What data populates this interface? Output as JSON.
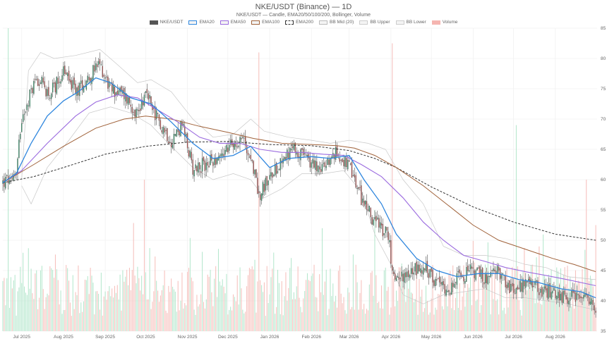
{
  "header": {
    "title": "NKE/USDT (Binance) — 1D",
    "subtitle": "NKE/USDT — Candle, EMA20/50/100/200, Bollinger, Volume"
  },
  "legend": [
    {
      "label": "NKE/USDT",
      "color": "#555555",
      "style": "fill"
    },
    {
      "label": "EMA20",
      "color": "#2e86de",
      "style": "outline"
    },
    {
      "label": "EMA50",
      "color": "#9b6bdf",
      "style": "outline"
    },
    {
      "label": "EMA100",
      "color": "#a0623a",
      "style": "outline"
    },
    {
      "label": "EMA200",
      "color": "#333333",
      "style": "dashed"
    },
    {
      "label": "BB Mid (20)",
      "color": "#bbbbbb",
      "style": "outline"
    },
    {
      "label": "BB Upper",
      "color": "#cccccc",
      "style": "outline"
    },
    {
      "label": "BB Lower",
      "color": "#cccccc",
      "style": "outline"
    },
    {
      "label": "Volume",
      "color": "#f5b5b0",
      "style": "fill"
    }
  ],
  "chart_data": {
    "type": "candlestick",
    "title": "NKE/USDT (Binance) — 1D",
    "subtitle": "NKE/USDT — Candle, EMA20/50/100/200, Bollinger, Volume",
    "x_range": [
      "2025-06-17",
      "2026-09-01"
    ],
    "ylim": [
      35,
      85
    ],
    "y_ticks": [
      35,
      40,
      45,
      50,
      55,
      60,
      65,
      70,
      75,
      80,
      85
    ],
    "x_ticks": [
      {
        "date": "2025-07-01",
        "label": "Jul 2025"
      },
      {
        "date": "2025-08-01",
        "label": "Aug 2025"
      },
      {
        "date": "2025-09-01",
        "label": "Sep 2025"
      },
      {
        "date": "2025-10-01",
        "label": "Oct 2025"
      },
      {
        "date": "2025-11-01",
        "label": "Nov 2025"
      },
      {
        "date": "2025-12-01",
        "label": "Dec 2025"
      },
      {
        "date": "2026-01-01",
        "label": "Jan 2026"
      },
      {
        "date": "2026-02-01",
        "label": "Feb 2026"
      },
      {
        "date": "2026-03-01",
        "label": "Mar 2026"
      },
      {
        "date": "2026-04-01",
        "label": "Apr 2026"
      },
      {
        "date": "2026-05-01",
        "label": "May 2026"
      },
      {
        "date": "2026-06-01",
        "label": "Jun 2026"
      },
      {
        "date": "2026-07-01",
        "label": "Jul 2026"
      },
      {
        "date": "2026-08-01",
        "label": "Aug 2026"
      }
    ],
    "price_path": [
      [
        "2025-06-17",
        59.5
      ],
      [
        "2025-06-26",
        60.5
      ],
      [
        "2025-07-02",
        71
      ],
      [
        "2025-07-12",
        77
      ],
      [
        "2025-07-22",
        74
      ],
      [
        "2025-08-01",
        78
      ],
      [
        "2025-08-10",
        74.5
      ],
      [
        "2025-08-20",
        77
      ],
      [
        "2025-08-28",
        79
      ],
      [
        "2025-09-05",
        75
      ],
      [
        "2025-09-15",
        74
      ],
      [
        "2025-09-25",
        71
      ],
      [
        "2025-10-01",
        74.5
      ],
      [
        "2025-10-10",
        70
      ],
      [
        "2025-10-20",
        66.5
      ],
      [
        "2025-10-28",
        69
      ],
      [
        "2025-11-05",
        62
      ],
      [
        "2025-11-15",
        62.5
      ],
      [
        "2025-11-25",
        64
      ],
      [
        "2025-12-05",
        66
      ],
      [
        "2025-12-12",
        67
      ],
      [
        "2025-12-20",
        62
      ],
      [
        "2025-12-24",
        57.5
      ],
      [
        "2025-12-31",
        60
      ],
      [
        "2026-01-10",
        63.5
      ],
      [
        "2026-01-20",
        65
      ],
      [
        "2026-01-30",
        63
      ],
      [
        "2026-02-10",
        62
      ],
      [
        "2026-02-20",
        64.5
      ],
      [
        "2026-03-01",
        62
      ],
      [
        "2026-03-10",
        57
      ],
      [
        "2026-03-20",
        53
      ],
      [
        "2026-03-30",
        51
      ],
      [
        "2026-04-03",
        43.5
      ],
      [
        "2026-04-15",
        45
      ],
      [
        "2026-04-25",
        45.5
      ],
      [
        "2026-05-05",
        43
      ],
      [
        "2026-05-15",
        42
      ],
      [
        "2026-05-22",
        44
      ],
      [
        "2026-06-01",
        45
      ],
      [
        "2026-06-10",
        43.5
      ],
      [
        "2026-06-20",
        45
      ],
      [
        "2026-06-30",
        41.5
      ],
      [
        "2026-07-10",
        43
      ],
      [
        "2026-07-20",
        42
      ],
      [
        "2026-07-30",
        41.5
      ],
      [
        "2026-08-10",
        40.5
      ],
      [
        "2026-08-20",
        41
      ],
      [
        "2026-08-31",
        38.5
      ]
    ],
    "ema20": [
      [
        "2025-06-17",
        59.5
      ],
      [
        "2025-06-27",
        61
      ],
      [
        "2025-07-08",
        66
      ],
      [
        "2025-07-20",
        70.5
      ],
      [
        "2025-08-01",
        73
      ],
      [
        "2025-08-12",
        74.5
      ],
      [
        "2025-08-25",
        76.8
      ],
      [
        "2025-09-05",
        76
      ],
      [
        "2025-09-20",
        73.5
      ],
      [
        "2025-10-05",
        72.5
      ],
      [
        "2025-10-20",
        69.5
      ],
      [
        "2025-11-05",
        66
      ],
      [
        "2025-11-20",
        63.5
      ],
      [
        "2025-12-05",
        64
      ],
      [
        "2025-12-18",
        65.5
      ],
      [
        "2026-01-01",
        62
      ],
      [
        "2026-01-15",
        63.5
      ],
      [
        "2026-02-01",
        63.8
      ],
      [
        "2026-02-15",
        63.5
      ],
      [
        "2026-03-01",
        64
      ],
      [
        "2026-03-12",
        60
      ],
      [
        "2026-03-25",
        56
      ],
      [
        "2026-04-05",
        51
      ],
      [
        "2026-04-20",
        47
      ],
      [
        "2026-05-05",
        45
      ],
      [
        "2026-05-20",
        44
      ],
      [
        "2026-06-05",
        44.5
      ],
      [
        "2026-06-20",
        44.5
      ],
      [
        "2026-07-05",
        43.5
      ],
      [
        "2026-07-20",
        43
      ],
      [
        "2026-08-05",
        42
      ],
      [
        "2026-08-20",
        41.5
      ],
      [
        "2026-08-31",
        40.5
      ]
    ],
    "ema50": [
      [
        "2025-06-17",
        59.5
      ],
      [
        "2025-07-01",
        61.5
      ],
      [
        "2025-07-20",
        66
      ],
      [
        "2025-08-10",
        70.5
      ],
      [
        "2025-08-25",
        72.8
      ],
      [
        "2025-09-10",
        74
      ],
      [
        "2025-09-25",
        73.5
      ],
      [
        "2025-10-10",
        71.5
      ],
      [
        "2025-10-25",
        69.5
      ],
      [
        "2025-11-10",
        67
      ],
      [
        "2025-11-25",
        66
      ],
      [
        "2025-12-10",
        66
      ],
      [
        "2025-12-25",
        65
      ],
      [
        "2026-01-10",
        64.5
      ],
      [
        "2026-01-25",
        64.5
      ],
      [
        "2026-02-10",
        64.2
      ],
      [
        "2026-02-25",
        64
      ],
      [
        "2026-03-10",
        62.5
      ],
      [
        "2026-03-25",
        60.5
      ],
      [
        "2026-04-10",
        57
      ],
      [
        "2026-04-25",
        53
      ],
      [
        "2026-05-10",
        50
      ],
      [
        "2026-05-25",
        47.5
      ],
      [
        "2026-06-10",
        46.5
      ],
      [
        "2026-06-25",
        45.5
      ],
      [
        "2026-07-10",
        44.8
      ],
      [
        "2026-07-25",
        44.2
      ],
      [
        "2026-08-10",
        43.5
      ],
      [
        "2026-08-31",
        42.5
      ]
    ],
    "ema100": [
      [
        "2025-06-17",
        59.5
      ],
      [
        "2025-07-10",
        62.5
      ],
      [
        "2025-08-01",
        65.5
      ],
      [
        "2025-08-25",
        68.5
      ],
      [
        "2025-09-15",
        70
      ],
      [
        "2025-10-01",
        70.5
      ],
      [
        "2025-10-20",
        70
      ],
      [
        "2025-11-10",
        68.8
      ],
      [
        "2025-12-01",
        67.8
      ],
      [
        "2025-12-20",
        66.8
      ],
      [
        "2026-01-10",
        66
      ],
      [
        "2026-02-01",
        65.8
      ],
      [
        "2026-02-20",
        65.6
      ],
      [
        "2026-03-05",
        65.2
      ],
      [
        "2026-03-20",
        64
      ],
      [
        "2026-04-05",
        62
      ],
      [
        "2026-04-25",
        59
      ],
      [
        "2026-05-15",
        55.5
      ],
      [
        "2026-06-01",
        52.5
      ],
      [
        "2026-06-20",
        50
      ],
      [
        "2026-07-10",
        48.5
      ],
      [
        "2026-07-30",
        47
      ],
      [
        "2026-08-15",
        46
      ],
      [
        "2026-08-31",
        44.8
      ]
    ],
    "ema200": [
      [
        "2025-06-17",
        59.5
      ],
      [
        "2025-07-10",
        60.5
      ],
      [
        "2025-08-01",
        62
      ],
      [
        "2025-09-01",
        64.2
      ],
      [
        "2025-10-01",
        65.5
      ],
      [
        "2025-11-01",
        66.2
      ],
      [
        "2025-12-01",
        66.3
      ],
      [
        "2026-01-01",
        65.8
      ],
      [
        "2026-02-01",
        65.6
      ],
      [
        "2026-03-01",
        64.8
      ],
      [
        "2026-03-20",
        63.5
      ],
      [
        "2026-04-05",
        62
      ],
      [
        "2026-05-01",
        58.8
      ],
      [
        "2026-06-01",
        55.5
      ],
      [
        "2026-07-01",
        53
      ],
      [
        "2026-08-01",
        51
      ],
      [
        "2026-08-31",
        50
      ]
    ],
    "bb_upper": [
      [
        "2025-07-01",
        60
      ],
      [
        "2025-07-06",
        78
      ],
      [
        "2025-07-15",
        81
      ],
      [
        "2025-07-25",
        80
      ],
      [
        "2025-08-10",
        80.5
      ],
      [
        "2025-08-28",
        81.5
      ],
      [
        "2025-09-10",
        79
      ],
      [
        "2025-09-25",
        76
      ],
      [
        "2025-10-05",
        76.5
      ],
      [
        "2025-10-20",
        74.5
      ],
      [
        "2025-11-05",
        70
      ],
      [
        "2025-11-20",
        67
      ],
      [
        "2025-12-05",
        67.5
      ],
      [
        "2025-12-18",
        70
      ],
      [
        "2025-12-28",
        68
      ],
      [
        "2026-01-15",
        67
      ],
      [
        "2026-02-01",
        66.5
      ],
      [
        "2026-02-15",
        66
      ],
      [
        "2026-03-01",
        66.5
      ],
      [
        "2026-03-15",
        66
      ],
      [
        "2026-03-28",
        65
      ],
      [
        "2026-04-10",
        60
      ],
      [
        "2026-04-25",
        56
      ],
      [
        "2026-05-10",
        49
      ],
      [
        "2026-05-25",
        47.5
      ],
      [
        "2026-06-10",
        47.5
      ],
      [
        "2026-06-25",
        47
      ],
      [
        "2026-07-10",
        46
      ],
      [
        "2026-07-25",
        45.5
      ],
      [
        "2026-08-10",
        44
      ],
      [
        "2026-08-31",
        43.5
      ]
    ],
    "bb_lower": [
      [
        "2025-07-01",
        59
      ],
      [
        "2025-07-08",
        56
      ],
      [
        "2025-07-20",
        62
      ],
      [
        "2025-08-05",
        66.5
      ],
      [
        "2025-08-20",
        71
      ],
      [
        "2025-09-05",
        72
      ],
      [
        "2025-09-20",
        71
      ],
      [
        "2025-10-05",
        69
      ],
      [
        "2025-10-20",
        65.5
      ],
      [
        "2025-11-05",
        62
      ],
      [
        "2025-11-20",
        60
      ],
      [
        "2025-12-05",
        61
      ],
      [
        "2025-12-18",
        60
      ],
      [
        "2025-12-28",
        57
      ],
      [
        "2026-01-10",
        58.5
      ],
      [
        "2026-01-25",
        61
      ],
      [
        "2026-02-10",
        61
      ],
      [
        "2026-02-25",
        61.5
      ],
      [
        "2026-03-10",
        58
      ],
      [
        "2026-03-20",
        51
      ],
      [
        "2026-04-01",
        46
      ],
      [
        "2026-04-10",
        41
      ],
      [
        "2026-04-25",
        39.5
      ],
      [
        "2026-05-10",
        41
      ],
      [
        "2026-05-25",
        41.5
      ],
      [
        "2026-06-10",
        42
      ],
      [
        "2026-06-25",
        40.5
      ],
      [
        "2026-07-10",
        40.5
      ],
      [
        "2026-07-25",
        40
      ],
      [
        "2026-08-10",
        39.5
      ],
      [
        "2026-08-31",
        38.5
      ]
    ],
    "volume_spikes": [
      [
        "2025-06-21",
        1.0,
        "up"
      ],
      [
        "2025-09-30",
        0.5,
        "down"
      ],
      [
        "2025-12-24",
        0.92,
        "down"
      ],
      [
        "2026-03-20",
        0.4,
        "up"
      ],
      [
        "2026-04-02",
        0.95,
        "down"
      ],
      [
        "2026-07-03",
        0.68,
        "up"
      ],
      [
        "2026-08-24",
        0.5,
        "down"
      ],
      [
        "2026-08-31",
        0.35,
        "down"
      ]
    ],
    "colors": {
      "up": "#2f9e6e",
      "down": "#c0504d",
      "volume_up": "#a8e3c4",
      "volume_down": "#f5b5b0",
      "ema20": "#2e86de",
      "ema50": "#9b6bdf",
      "ema100": "#a0623a",
      "ema200": "#333333",
      "bb": "#c8c8c8",
      "grid": "#eeeeee"
    },
    "grid": true,
    "legend_position": "top-center"
  }
}
